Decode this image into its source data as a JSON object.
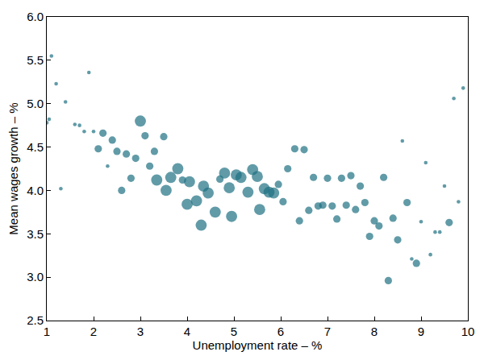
{
  "chart_data": {
    "type": "scatter",
    "x_label": "Unemployment rate – %",
    "y_label": "Mean wages growth – %",
    "color": "#1e7182",
    "marker": "circle",
    "grid": false,
    "xlim": [
      1,
      10
    ],
    "ylim": [
      2.5,
      6.0
    ],
    "xticks": [
      1,
      2,
      3,
      4,
      5,
      6,
      7,
      8,
      9,
      10
    ],
    "yticks": [
      2.5,
      {
        "value": 3,
        "label": "3.0"
      },
      3.5,
      {
        "value": 4,
        "label": "4.0"
      },
      4.5,
      {
        "value": 5,
        "label": "5.0"
      },
      5.5,
      {
        "value": 6,
        "label": "6.0"
      }
    ],
    "x": [
      1.0,
      1.05,
      1.1,
      1.2,
      1.3,
      1.4,
      1.6,
      1.7,
      1.8,
      1.9,
      2.0,
      2.1,
      2.2,
      2.3,
      2.4,
      2.5,
      2.6,
      2.7,
      2.8,
      2.9,
      3.0,
      3.1,
      3.2,
      3.3,
      3.35,
      3.5,
      3.55,
      3.65,
      3.8,
      3.9,
      4.0,
      4.05,
      4.2,
      4.3,
      4.35,
      4.45,
      4.6,
      4.7,
      4.8,
      4.9,
      4.95,
      5.05,
      5.15,
      5.3,
      5.4,
      5.5,
      5.55,
      5.65,
      5.75,
      5.85,
      5.95,
      6.05,
      6.15,
      6.3,
      6.4,
      6.5,
      6.6,
      6.7,
      6.8,
      6.9,
      7.0,
      7.1,
      7.2,
      7.3,
      7.4,
      7.5,
      7.6,
      7.7,
      7.8,
      7.9,
      8.0,
      8.1,
      8.2,
      8.3,
      8.4,
      8.5,
      8.6,
      8.7,
      8.8,
      8.9,
      9.0,
      9.1,
      9.2,
      9.3,
      9.4,
      9.5,
      9.6,
      9.7,
      9.8,
      9.9
    ],
    "y": [
      4.78,
      4.82,
      5.55,
      5.23,
      4.02,
      5.02,
      4.76,
      4.75,
      4.68,
      5.36,
      4.68,
      4.48,
      4.66,
      4.28,
      4.58,
      4.45,
      4.0,
      4.42,
      4.14,
      4.37,
      4.8,
      4.63,
      4.28,
      4.45,
      4.12,
      4.62,
      4.0,
      4.15,
      4.25,
      4.12,
      3.84,
      4.1,
      3.88,
      3.6,
      4.05,
      3.97,
      3.75,
      4.13,
      4.2,
      4.03,
      3.7,
      4.18,
      4.15,
      3.98,
      4.24,
      4.16,
      3.78,
      4.02,
      3.98,
      3.97,
      4.07,
      3.87,
      4.25,
      4.48,
      3.65,
      4.47,
      3.77,
      4.15,
      3.82,
      3.83,
      4.14,
      3.82,
      3.67,
      4.14,
      3.83,
      4.17,
      3.78,
      4.05,
      3.86,
      3.47,
      3.65,
      3.59,
      4.15,
      2.96,
      3.68,
      3.43,
      4.57,
      3.86,
      3.21,
      3.16,
      3.64,
      4.32,
      3.26,
      3.52,
      3.52,
      4.05,
      3.63,
      5.06,
      3.87,
      5.18
    ],
    "sizes": [
      1,
      1,
      1,
      1,
      1,
      1,
      1,
      1,
      1,
      1,
      1,
      2,
      2,
      1,
      2,
      2,
      2,
      2,
      2,
      2,
      3,
      2,
      2,
      2,
      3,
      2,
      3,
      3,
      3,
      2,
      3,
      3,
      3,
      3,
      3,
      3,
      3,
      2,
      3,
      3,
      3,
      3,
      3,
      3,
      3,
      3,
      3,
      3,
      3,
      3,
      2,
      2,
      2,
      2,
      2,
      2,
      2,
      2,
      2,
      2,
      2,
      2,
      2,
      2,
      2,
      2,
      2,
      2,
      2,
      2,
      2,
      2,
      2,
      2,
      2,
      2,
      1,
      2,
      1,
      2,
      1,
      1,
      1,
      1,
      1,
      1,
      2,
      1,
      1,
      1
    ]
  }
}
